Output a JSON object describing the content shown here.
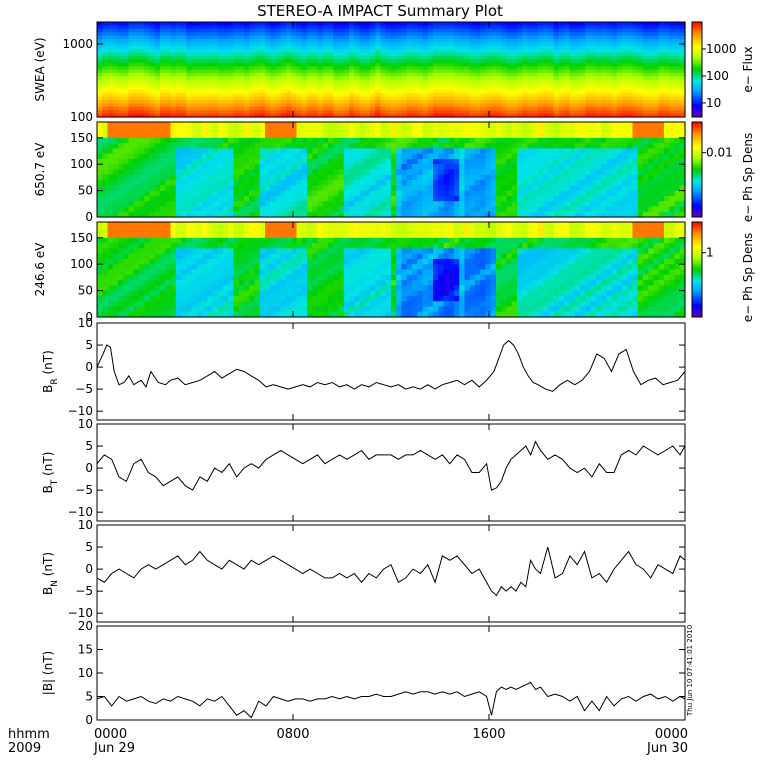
{
  "title": "STEREO-A IMPACT Summary Plot",
  "footer": {
    "time_label": "hhmm",
    "year_label": "2009",
    "generated_stamp": "Thu Jun 10 07:41:01 2010"
  },
  "x_axis": {
    "range_hours": [
      0,
      24
    ],
    "ticks": [
      {
        "hours": 0,
        "label": "0000",
        "date": "Jun 29"
      },
      {
        "hours": 8,
        "label": "0800",
        "date": ""
      },
      {
        "hours": 16,
        "label": "1600",
        "date": ""
      },
      {
        "hours": 24,
        "label": "0000",
        "date": "Jun 30"
      }
    ]
  },
  "colors": {
    "frame": "#000000",
    "line": "#000000",
    "colorbar": [
      "#6a00b0",
      "#0000ff",
      "#00aaff",
      "#00e5e5",
      "#00d000",
      "#aaff00",
      "#ffff00",
      "#ff9900",
      "#ff0000"
    ]
  },
  "chart_data": [
    {
      "type": "heatmap",
      "ylabel": "SWEA (eV)",
      "yscale": "log",
      "ylim": [
        100,
        2000
      ],
      "yticks": [
        {
          "value": 100,
          "label": "100"
        },
        {
          "value": 1000,
          "label": "1000"
        }
      ],
      "colorbar": {
        "label": "e− Flux",
        "scale": "log",
        "ticks": [
          {
            "value": 10,
            "label": "10"
          },
          {
            "value": 100,
            "label": "100"
          },
          {
            "value": 1000,
            "label": "1000"
          }
        ],
        "range": [
          3,
          10000
        ]
      },
      "description_kind": "energy-spectrogram"
    },
    {
      "type": "heatmap",
      "ylabel": "650.7 eV",
      "ylim": [
        0,
        180
      ],
      "yticks": [
        {
          "value": 0,
          "label": "0"
        },
        {
          "value": 50,
          "label": "50"
        },
        {
          "value": 100,
          "label": "100"
        },
        {
          "value": 150,
          "label": "150"
        }
      ],
      "colorbar": {
        "label": "e− Ph Sp Dens",
        "scale": "log",
        "ticks": [
          {
            "value": 0.01,
            "label": "0.01"
          }
        ],
        "range": [
          0.001,
          0.03
        ]
      },
      "description_kind": "pitch-angle"
    },
    {
      "type": "heatmap",
      "ylabel": "246.6 eV",
      "ylim": [
        0,
        180
      ],
      "yticks": [
        {
          "value": 0,
          "label": "0"
        },
        {
          "value": 50,
          "label": "50"
        },
        {
          "value": 100,
          "label": "100"
        },
        {
          "value": 150,
          "label": "150"
        }
      ],
      "colorbar": {
        "label": "e− Ph Sp Dens",
        "scale": "log",
        "ticks": [
          {
            "value": 1,
            "label": "1"
          }
        ],
        "range": [
          0.1,
          3
        ]
      },
      "description_kind": "pitch-angle"
    },
    {
      "type": "line",
      "ylabel": "B_R (nT)",
      "ylabel_main": "B",
      "ylabel_sub": "R",
      "ylabel_unit": " (nT)",
      "ylim": [
        -12,
        10
      ],
      "yticks": [
        {
          "value": -10,
          "label": "−10"
        },
        {
          "value": -5,
          "label": "−5"
        },
        {
          "value": 0,
          "label": "0"
        },
        {
          "value": 5,
          "label": "5"
        },
        {
          "value": 10,
          "label": "10"
        }
      ],
      "x": [
        0,
        0.25,
        0.4,
        0.55,
        0.7,
        0.9,
        1.1,
        1.3,
        1.5,
        1.8,
        2.0,
        2.2,
        2.5,
        2.8,
        3.0,
        3.3,
        3.6,
        3.9,
        4.2,
        4.5,
        4.8,
        5.1,
        5.4,
        5.7,
        6.0,
        6.3,
        6.6,
        6.9,
        7.2,
        7.5,
        7.8,
        8.1,
        8.4,
        8.7,
        9.0,
        9.3,
        9.6,
        9.9,
        10.2,
        10.5,
        10.8,
        11.1,
        11.4,
        11.7,
        12.0,
        12.3,
        12.6,
        12.9,
        13.2,
        13.5,
        13.8,
        14.1,
        14.4,
        14.7,
        15.0,
        15.3,
        15.6,
        15.9,
        16.2,
        16.4,
        16.6,
        16.8,
        17.0,
        17.2,
        17.4,
        17.6,
        17.8,
        18.0,
        18.3,
        18.6,
        18.9,
        19.2,
        19.5,
        19.8,
        20.1,
        20.4,
        20.7,
        21.0,
        21.3,
        21.6,
        21.9,
        22.2,
        22.5,
        22.8,
        23.1,
        23.4,
        23.7,
        24.0
      ],
      "y": [
        0,
        3,
        5,
        4.5,
        -1,
        -4,
        -3.5,
        -2,
        -4,
        -3,
        -4.5,
        -1,
        -3.5,
        -4,
        -3,
        -2.5,
        -4,
        -3.5,
        -3,
        -2,
        -1,
        -2.5,
        -1.5,
        -0.5,
        -1,
        -2,
        -3,
        -4.5,
        -4,
        -4.5,
        -5,
        -4.5,
        -4,
        -4.5,
        -3.5,
        -4,
        -3.5,
        -4.5,
        -4,
        -5,
        -4,
        -4.5,
        -3.5,
        -4,
        -4.5,
        -4,
        -5,
        -4.5,
        -5,
        -4,
        -5,
        -4,
        -3.5,
        -3,
        -4,
        -3,
        -4.5,
        -3,
        -1,
        2,
        5,
        6,
        5,
        3,
        0,
        -2,
        -3.5,
        -4,
        -5,
        -5.5,
        -4,
        -3,
        -4,
        -3,
        -1,
        3,
        2,
        -1,
        3,
        4,
        -1,
        -4,
        -3,
        -2.5,
        -4,
        -3.5,
        -3,
        -1
      ]
    },
    {
      "type": "line",
      "ylabel": "B_T (nT)",
      "ylabel_main": "B",
      "ylabel_sub": "T",
      "ylabel_unit": " (nT)",
      "ylim": [
        -12,
        10
      ],
      "yticks": [
        {
          "value": -10,
          "label": "−10"
        },
        {
          "value": -5,
          "label": "−5"
        },
        {
          "value": 0,
          "label": "0"
        },
        {
          "value": 5,
          "label": "5"
        },
        {
          "value": 10,
          "label": "10"
        }
      ],
      "x": [
        0,
        0.3,
        0.6,
        0.9,
        1.2,
        1.5,
        1.8,
        2.1,
        2.4,
        2.7,
        3.0,
        3.3,
        3.6,
        3.9,
        4.2,
        4.5,
        4.8,
        5.1,
        5.4,
        5.7,
        6.0,
        6.3,
        6.6,
        6.9,
        7.2,
        7.5,
        7.8,
        8.1,
        8.4,
        8.7,
        9.0,
        9.3,
        9.6,
        9.9,
        10.2,
        10.5,
        10.8,
        11.1,
        11.4,
        11.7,
        12.0,
        12.3,
        12.6,
        12.9,
        13.2,
        13.5,
        13.8,
        14.1,
        14.4,
        14.7,
        15.0,
        15.3,
        15.6,
        15.9,
        16.1,
        16.3,
        16.5,
        16.7,
        16.9,
        17.1,
        17.3,
        17.5,
        17.7,
        17.9,
        18.1,
        18.4,
        18.7,
        19.0,
        19.3,
        19.6,
        19.9,
        20.2,
        20.5,
        20.8,
        21.1,
        21.4,
        21.7,
        22.0,
        22.3,
        22.6,
        22.9,
        23.2,
        23.5,
        23.8,
        24.0
      ],
      "y": [
        1,
        3,
        2,
        -2,
        -3,
        1,
        2,
        -1,
        -2,
        -4,
        -3,
        -2,
        -4,
        -5,
        -2,
        -3,
        0,
        -1,
        1,
        -2,
        0,
        1,
        0,
        2,
        3,
        4,
        3,
        2,
        1,
        2,
        3,
        1,
        2,
        3,
        2,
        3,
        4,
        2,
        3,
        3,
        3,
        2,
        3,
        3,
        4,
        3,
        2,
        3,
        1,
        3,
        2,
        -1,
        -1,
        1,
        -5,
        -4.5,
        -3,
        0,
        2,
        3,
        4,
        5,
        3,
        6,
        4,
        2,
        3,
        2,
        0,
        -1,
        0,
        -2,
        1,
        -1,
        -1,
        3,
        4,
        3,
        5,
        4,
        3,
        4,
        5,
        3,
        5
      ]
    },
    {
      "type": "line",
      "ylabel": "B_N (nT)",
      "ylabel_main": "B",
      "ylabel_sub": "N",
      "ylabel_unit": " (nT)",
      "ylim": [
        -12,
        10
      ],
      "yticks": [
        {
          "value": -10,
          "label": "−10"
        },
        {
          "value": -5,
          "label": "−5"
        },
        {
          "value": 0,
          "label": "0"
        },
        {
          "value": 5,
          "label": "5"
        },
        {
          "value": 10,
          "label": "10"
        }
      ],
      "x": [
        0,
        0.3,
        0.6,
        0.9,
        1.2,
        1.5,
        1.8,
        2.1,
        2.4,
        2.7,
        3.0,
        3.3,
        3.6,
        3.9,
        4.2,
        4.5,
        4.8,
        5.1,
        5.4,
        5.7,
        6.0,
        6.3,
        6.6,
        6.9,
        7.2,
        7.5,
        7.8,
        8.1,
        8.4,
        8.7,
        9.0,
        9.3,
        9.6,
        9.9,
        10.2,
        10.5,
        10.8,
        11.1,
        11.4,
        11.7,
        12.0,
        12.3,
        12.6,
        12.9,
        13.2,
        13.5,
        13.8,
        14.1,
        14.4,
        14.7,
        15.0,
        15.3,
        15.6,
        15.9,
        16.1,
        16.3,
        16.5,
        16.7,
        16.9,
        17.1,
        17.3,
        17.5,
        17.7,
        17.9,
        18.1,
        18.4,
        18.7,
        19.0,
        19.3,
        19.6,
        19.9,
        20.2,
        20.5,
        20.8,
        21.1,
        21.4,
        21.7,
        22.0,
        22.3,
        22.6,
        22.9,
        23.2,
        23.5,
        23.8,
        24.0
      ],
      "y": [
        -2,
        -3,
        -1,
        0,
        -1,
        -2,
        0,
        1,
        0,
        1,
        2,
        3,
        1,
        2,
        4,
        2,
        1,
        0,
        2,
        1,
        0,
        2,
        1,
        2,
        3,
        2,
        1,
        0,
        -1,
        0,
        -1,
        -2,
        -2,
        -1,
        -2,
        -1,
        -3,
        -1,
        -2,
        0,
        1,
        -3,
        -2,
        0,
        -1,
        1,
        -3,
        3,
        2,
        3,
        1,
        -1,
        0,
        -3,
        -5,
        -6,
        -4,
        -5,
        -4,
        -5,
        -3,
        -4,
        2,
        0,
        -1,
        5,
        -2,
        -1,
        3,
        1,
        4,
        -2,
        -1,
        -3,
        0,
        2,
        4,
        1,
        0,
        -2,
        1,
        0,
        -1,
        3,
        2
      ]
    },
    {
      "type": "line",
      "ylabel": "|B| (nT)",
      "ylabel_main": "|B|",
      "ylabel_sub": "",
      "ylabel_unit": " (nT)",
      "ylim": [
        0,
        20
      ],
      "yticks": [
        {
          "value": 0,
          "label": "0"
        },
        {
          "value": 5,
          "label": "5"
        },
        {
          "value": 10,
          "label": "10"
        },
        {
          "value": 15,
          "label": "15"
        },
        {
          "value": 20,
          "label": "20"
        }
      ],
      "x": [
        0,
        0.3,
        0.6,
        0.9,
        1.2,
        1.5,
        1.8,
        2.1,
        2.4,
        2.7,
        3.0,
        3.3,
        3.6,
        3.9,
        4.2,
        4.5,
        4.8,
        5.1,
        5.4,
        5.7,
        6.0,
        6.3,
        6.6,
        6.9,
        7.2,
        7.5,
        7.8,
        8.1,
        8.4,
        8.7,
        9.0,
        9.3,
        9.6,
        9.9,
        10.2,
        10.5,
        10.8,
        11.1,
        11.4,
        11.7,
        12.0,
        12.3,
        12.6,
        12.9,
        13.2,
        13.5,
        13.8,
        14.1,
        14.4,
        14.7,
        15.0,
        15.3,
        15.6,
        15.9,
        16.1,
        16.3,
        16.5,
        16.7,
        16.9,
        17.1,
        17.3,
        17.5,
        17.7,
        17.9,
        18.1,
        18.4,
        18.7,
        19.0,
        19.3,
        19.6,
        19.9,
        20.2,
        20.5,
        20.8,
        21.1,
        21.4,
        21.7,
        22.0,
        22.3,
        22.6,
        22.9,
        23.2,
        23.5,
        23.8,
        24.0
      ],
      "y": [
        4.5,
        5,
        3,
        5,
        4,
        4.5,
        5,
        4,
        3.5,
        4.5,
        4,
        5,
        4.5,
        4,
        3,
        4.5,
        4,
        5,
        3,
        1,
        2,
        0.5,
        4,
        3,
        5,
        4.5,
        4,
        4.5,
        4.5,
        4,
        4.5,
        4.5,
        5,
        4.5,
        5,
        4.5,
        5,
        5,
        5.5,
        5,
        5,
        5.5,
        6,
        5.5,
        6,
        6,
        5.5,
        6,
        5.5,
        6,
        5,
        5.5,
        6,
        5,
        1,
        6,
        7,
        6.5,
        7,
        6.5,
        7,
        7.5,
        8,
        6.5,
        7,
        5,
        5.5,
        5,
        4,
        5,
        2,
        4,
        2,
        5,
        3,
        4.5,
        5,
        4,
        5,
        5.5,
        4.5,
        5,
        4,
        5,
        4.5
      ]
    }
  ]
}
